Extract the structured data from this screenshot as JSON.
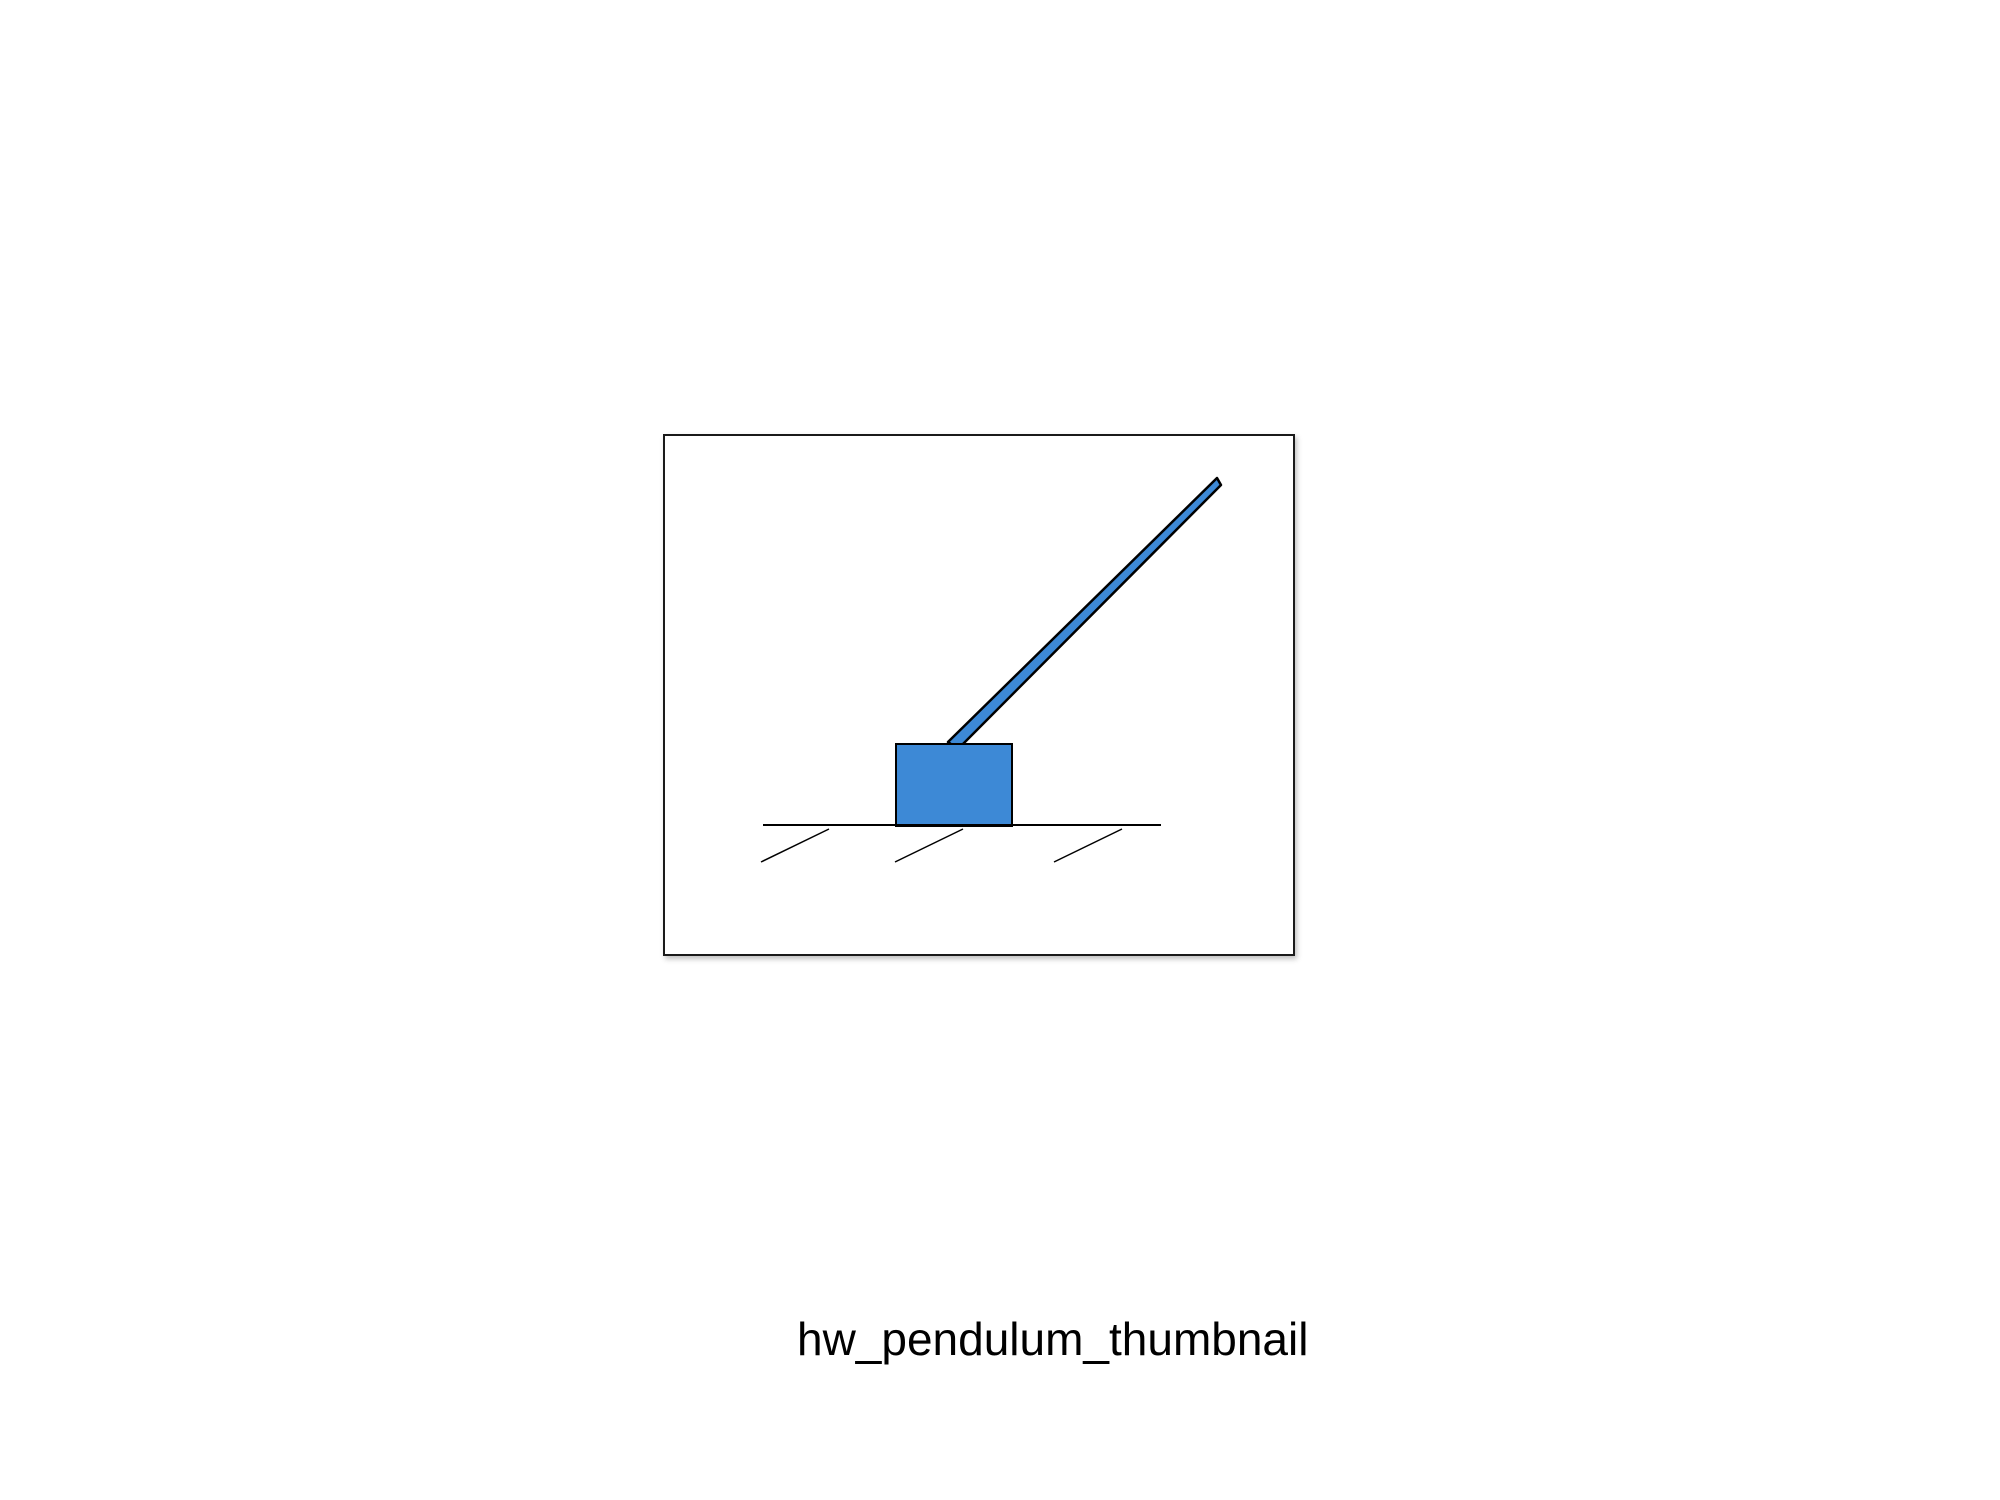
{
  "caption": "hw_pendulum_thumbnail",
  "colors": {
    "cart_fill": "#3d89d6",
    "outline": "#000000",
    "background": "#ffffff"
  }
}
